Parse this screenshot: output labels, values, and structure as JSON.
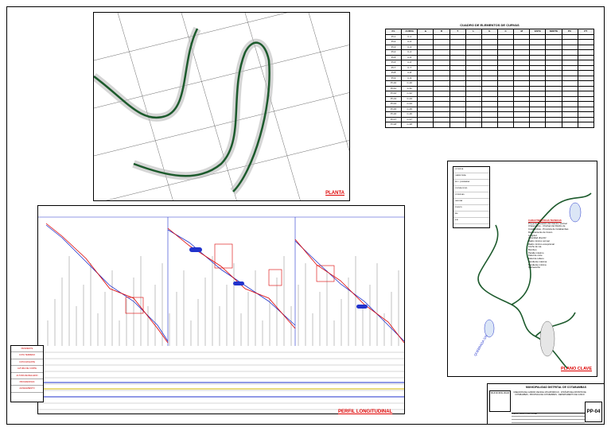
{
  "plan": {
    "title": "PLANTA"
  },
  "curve_table": {
    "title": "CUADRO DE ELEMENTOS DE CURVAS",
    "headers": [
      "P.I.",
      "CURVA",
      "Δ",
      "R",
      "T",
      "L",
      "E",
      "C",
      "M",
      "ESTE",
      "NORTE",
      "PC",
      "PT"
    ],
    "rows": [
      [
        "PI-1",
        "C-1",
        "",
        "",
        "",
        "",
        "",
        "",
        "",
        "",
        "",
        "",
        ""
      ],
      [
        "PI-2",
        "C-2",
        "",
        "",
        "",
        "",
        "",
        "",
        "",
        "",
        "",
        "",
        ""
      ],
      [
        "PI-3",
        "C-3",
        "",
        "",
        "",
        "",
        "",
        "",
        "",
        "",
        "",
        "",
        ""
      ],
      [
        "PI-4",
        "C-4",
        "",
        "",
        "",
        "",
        "",
        "",
        "",
        "",
        "",
        "",
        ""
      ],
      [
        "PI-5",
        "C-5",
        "",
        "",
        "",
        "",
        "",
        "",
        "",
        "",
        "",
        "",
        ""
      ],
      [
        "PI-6",
        "C-6",
        "",
        "",
        "",
        "",
        "",
        "",
        "",
        "",
        "",
        "",
        ""
      ],
      [
        "PI-7",
        "C-7",
        "",
        "",
        "",
        "",
        "",
        "",
        "",
        "",
        "",
        "",
        ""
      ],
      [
        "PI-8",
        "C-8",
        "",
        "",
        "",
        "",
        "",
        "",
        "",
        "",
        "",
        "",
        ""
      ],
      [
        "PI-9",
        "C-9",
        "",
        "",
        "",
        "",
        "",
        "",
        "",
        "",
        "",
        "",
        ""
      ],
      [
        "PI-10",
        "C-10",
        "",
        "",
        "",
        "",
        "",
        "",
        "",
        "",
        "",
        "",
        ""
      ],
      [
        "PI-11",
        "C-11",
        "",
        "",
        "",
        "",
        "",
        "",
        "",
        "",
        "",
        "",
        ""
      ],
      [
        "PI-12",
        "C-12",
        "",
        "",
        "",
        "",
        "",
        "",
        "",
        "",
        "",
        "",
        ""
      ],
      [
        "PI-13",
        "C-13",
        "",
        "",
        "",
        "",
        "",
        "",
        "",
        "",
        "",
        "",
        ""
      ],
      [
        "PI-14",
        "C-14",
        "",
        "",
        "",
        "",
        "",
        "",
        "",
        "",
        "",
        "",
        ""
      ],
      [
        "PI-15",
        "C-15",
        "",
        "",
        "",
        "",
        "",
        "",
        "",
        "",
        "",
        "",
        ""
      ],
      [
        "PI-16",
        "C-16",
        "",
        "",
        "",
        "",
        "",
        "",
        "",
        "",
        "",
        "",
        ""
      ],
      [
        "PI-17",
        "C-17",
        "",
        "",
        "",
        "",
        "",
        "",
        "",
        "",
        "",
        "",
        ""
      ],
      [
        "PI-18",
        "C-18",
        "",
        "",
        "",
        "",
        "",
        "",
        "",
        "",
        "",
        "",
        ""
      ]
    ]
  },
  "profile": {
    "title": "PERFIL LONGITUDINAL",
    "legend": [
      "PENDIENTE",
      "COTA TERRENO",
      "COTA RASANTE",
      "ALTURA DE CORTE",
      "ALTURA DE RELLENO",
      "PROGRESIVAS",
      "ALINEAMIENTO"
    ]
  },
  "keymap": {
    "title": "PLANO CLAVE",
    "legend": [
      "LEYENDA",
      "CARRETERA",
      "RIO / QUEBRADA",
      "CURVAS NIVEL",
      "VIVIENDAS",
      "LAGUNA",
      "PUENTE",
      "BM",
      "EJE"
    ],
    "tech_heading": "CARACTERISTICAS TECNICAS",
    "tech_lines": [
      "Proyecto: Creación del Camino Vecinal",
      "Chaupiorcco - Chuñupi del Distrito de",
      "Cotabambas - Provincia de Cotabambas",
      "Departamento de Cusco",
      "Longitud",
      "Velocidad directriz",
      "Radio mínimo normal",
      "Radio mínimo excepcional",
      "Ancho de vía",
      "Bombeo",
      "Peralte máximo",
      "Talud de corte",
      "Talud de relleno",
      "Pendiente máxima",
      "Pendiente mínima",
      "Sobreancho"
    ],
    "place_label": "QUEBRADA S/N"
  },
  "titleblock": {
    "municipality": "MUNICIPALIDAD DISTRITAL DE COTABAMBAS",
    "project": "CREACION DEL CAMINO VECINAL CHAUPIORCCO - CHUÑUPI DEL DISTRITO DE COTABAMBAS - PROVINCIA DE COTABAMBAS - DEPARTAMENTO DE CUSCO",
    "plan_name": "PLANTA Y PERFIL LONGITUDINAL",
    "sheet": "PP-04",
    "logo_text": "MUNICIPALIDAD"
  },
  "colors": {
    "accent_red": "#d00000",
    "road_green": "#1c5a2c",
    "grid_blue": "#2233cc"
  }
}
